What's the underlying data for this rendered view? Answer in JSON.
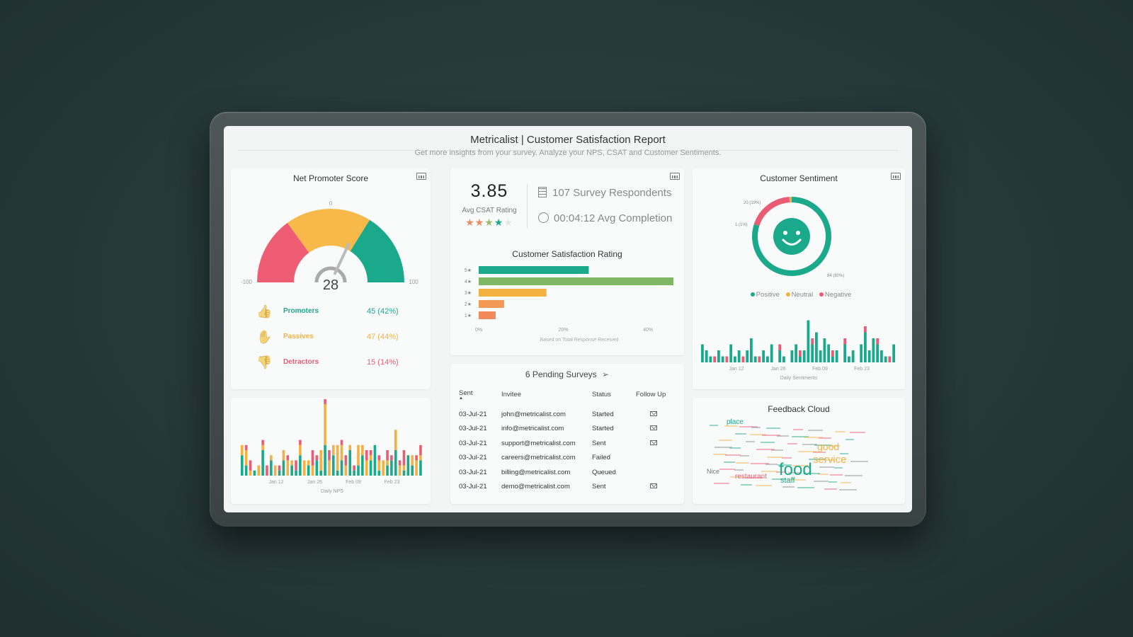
{
  "header": {
    "title": "Metricalist | Customer Satisfaction Report",
    "subtitle": "Get more insights from your survey. Analyze your NPS, CSAT and Customer Sentiments."
  },
  "nps": {
    "title": "Net Promoter Score",
    "score": "28",
    "score_value": 28,
    "min_label": "-100",
    "max_label": "100",
    "mid_label": "0",
    "colors": {
      "detractor": "#ee5d73",
      "passive": "#f7b94a",
      "promoter": "#1aa98a"
    },
    "rows": [
      {
        "label": "Promoters",
        "value": "45 (42%)",
        "color": "#1aa98a",
        "icon": "thumbs-up-icon",
        "glyph": "👍"
      },
      {
        "label": "Passives",
        "value": "47 (44%)",
        "color": "#f2b141",
        "icon": "hand-icon",
        "glyph": "✋"
      },
      {
        "label": "Detractors",
        "value": "15 (14%)",
        "color": "#ea5c74",
        "icon": "thumbs-down-icon",
        "glyph": "👎"
      }
    ]
  },
  "csat": {
    "avg": "3.85",
    "avg_label": "Avg CSAT Rating",
    "stars_filled": 4,
    "respondents": "107 Survey Respondents",
    "completion": "00:04:12 Avg Completion",
    "chart_title": "Customer Satisfaction Rating",
    "chart_note": "Based on Total Response Received"
  },
  "pending": {
    "title": "6 Pending Surveys",
    "columns": [
      "Sent",
      "Invitee",
      "Status",
      "Follow Up"
    ],
    "rows": [
      {
        "sent": "03-Jul-21",
        "invitee": "john@metricalist.com",
        "status": "Started",
        "follow_up": true
      },
      {
        "sent": "03-Jul-21",
        "invitee": "info@metricalist.com",
        "status": "Started",
        "follow_up": true
      },
      {
        "sent": "03-Jul-21",
        "invitee": "support@metricalist.com",
        "status": "Sent",
        "follow_up": true
      },
      {
        "sent": "03-Jul-21",
        "invitee": "careers@metricalist.com",
        "status": "Failed",
        "follow_up": false
      },
      {
        "sent": "03-Jul-21",
        "invitee": "billing@metricalist.com",
        "status": "Queued",
        "follow_up": false
      },
      {
        "sent": "03-Jul-21",
        "invitee": "demo@metricalist.com",
        "status": "Sent",
        "follow_up": true
      }
    ]
  },
  "sentiment": {
    "title": "Customer Sentiment",
    "legend": [
      "Positive",
      "Neutral",
      "Negative"
    ],
    "colors": {
      "positive": "#1aa98a",
      "neutral": "#f2b141",
      "negative": "#ea5c74"
    },
    "donut_labels": [
      "20 (19%)",
      "1 (1%)",
      "84 (80%)"
    ]
  },
  "feedback": {
    "title": "Feedback Cloud",
    "words": [
      {
        "t": "food",
        "c": "#1aa98a",
        "big": true
      },
      {
        "t": "service",
        "c": "#f2b141"
      },
      {
        "t": "good",
        "c": "#f2b141"
      },
      {
        "t": "place",
        "c": "#1aa98a"
      },
      {
        "t": "staff",
        "c": "#1aa98a"
      },
      {
        "t": "restaurant",
        "c": "#ea5c74"
      },
      {
        "t": "Nice",
        "c": "#777"
      }
    ]
  },
  "chart_data": [
    {
      "type": "bar",
      "title": "Customer Satisfaction Rating",
      "orientation": "horizontal",
      "categories": [
        "5★",
        "4★",
        "3★",
        "2★",
        "1★"
      ],
      "values": [
        26,
        46,
        16,
        6,
        4
      ],
      "colors": [
        "#1aa98a",
        "#7fb765",
        "#f2b141",
        "#f29a55",
        "#f08a5a"
      ],
      "xlim": [
        0,
        46
      ],
      "ticks": [
        "0%",
        "20%",
        "40%"
      ],
      "xlabel": "Based on Total Response Received"
    },
    {
      "type": "pie",
      "title": "Customer Sentiment",
      "categories": [
        "Positive",
        "Neutral",
        "Negative"
      ],
      "values": [
        84,
        1,
        20
      ],
      "colors": [
        "#1aa98a",
        "#f2b141",
        "#ea5c74"
      ]
    },
    {
      "type": "bar",
      "xlabel": "Daily NPS",
      "x_ticks": [
        "Jan 12",
        "Jan 26",
        "Feb 09",
        "Feb 23"
      ],
      "series_colors": [
        "#1aa98a",
        "#f2b141",
        "#ea5c74"
      ],
      "series": [
        {
          "values": [
            4,
            2,
            0,
            1,
            0,
            5,
            0,
            3,
            0,
            1,
            3,
            0,
            2,
            1,
            4,
            0,
            2,
            0,
            3,
            1,
            6,
            0,
            4,
            1,
            3,
            0,
            5,
            1,
            2,
            4,
            0,
            3,
            6,
            1,
            0,
            2,
            3,
            5,
            0,
            1,
            4,
            2,
            0,
            3
          ]
        },
        {
          "values": [
            2,
            3,
            1,
            0,
            2,
            1,
            0,
            1,
            2,
            0,
            2,
            3,
            1,
            0,
            2,
            3,
            1,
            2,
            0,
            4,
            8,
            3,
            2,
            5,
            3,
            2,
            1,
            0,
            4,
            2,
            3,
            1,
            0,
            2,
            3,
            1,
            0,
            4,
            2,
            1,
            0,
            2,
            3,
            1
          ]
        },
        {
          "values": [
            0,
            1,
            2,
            0,
            0,
            1,
            2,
            0,
            0,
            1,
            0,
            1,
            0,
            2,
            1,
            0,
            0,
            3,
            1,
            0,
            1,
            2,
            0,
            0,
            1,
            2,
            0,
            1,
            0,
            0,
            2,
            1,
            0,
            1,
            0,
            2,
            1,
            0,
            1,
            3,
            0,
            0,
            1,
            2
          ]
        }
      ]
    },
    {
      "type": "bar",
      "xlabel": "Daily Sentiments",
      "x_ticks": [
        "Jan 12",
        "Jan 26",
        "Feb 09",
        "Feb 23"
      ],
      "series_colors": [
        "#1aa98a",
        "#ea5c74"
      ],
      "series": [
        {
          "values": [
            3,
            2,
            1,
            0,
            2,
            1,
            0,
            3,
            1,
            2,
            0,
            2,
            4,
            1,
            0,
            2,
            1,
            3,
            0,
            2,
            1,
            0,
            2,
            3,
            1,
            2,
            7,
            3,
            5,
            2,
            4,
            3,
            1,
            2,
            0,
            3,
            1,
            2,
            0,
            3,
            5,
            2,
            4,
            3,
            2,
            1,
            0,
            3
          ]
        },
        {
          "values": [
            0,
            0,
            0,
            1,
            0,
            0,
            1,
            0,
            0,
            0,
            1,
            0,
            0,
            0,
            1,
            0,
            0,
            0,
            0,
            1,
            0,
            0,
            0,
            0,
            1,
            0,
            0,
            1,
            0,
            0,
            0,
            0,
            1,
            0,
            0,
            1,
            0,
            0,
            0,
            0,
            1,
            0,
            0,
            1,
            0,
            0,
            1,
            0
          ]
        }
      ]
    }
  ]
}
